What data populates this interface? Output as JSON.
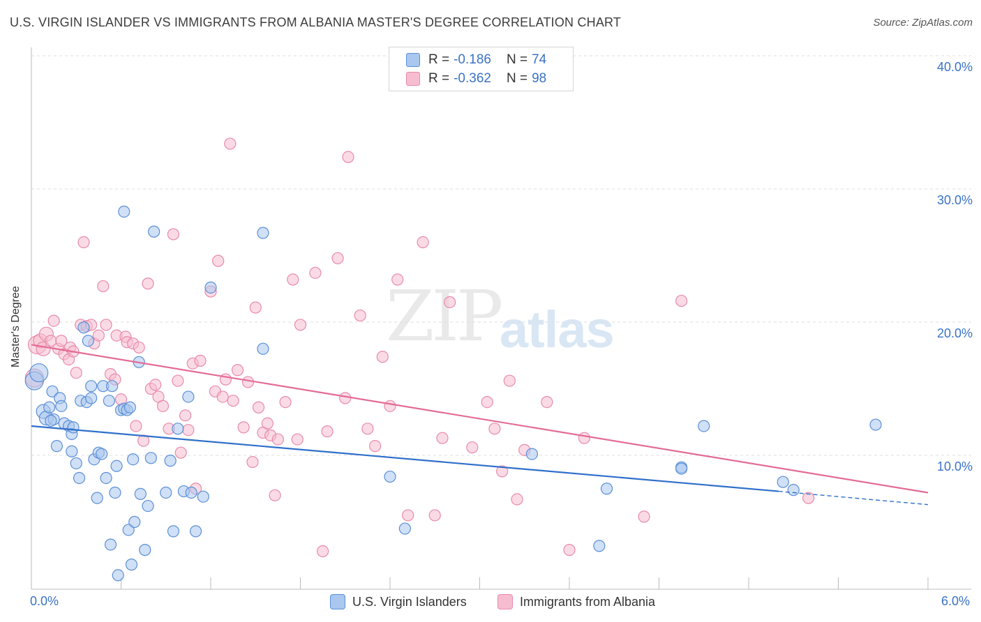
{
  "header": {
    "title": "U.S. VIRGIN ISLANDER VS IMMIGRANTS FROM ALBANIA MASTER'S DEGREE CORRELATION CHART",
    "source": "Source: ZipAtlas.com"
  },
  "watermark": {
    "zip": "ZIP",
    "atlas": "atlas"
  },
  "legend_top": {
    "rows": [
      {
        "r_label": "R =",
        "r_value": "-0.186",
        "n_label": "N =",
        "n_value": "74"
      },
      {
        "r_label": "R =",
        "r_value": "-0.362",
        "n_label": "N =",
        "n_value": "98"
      }
    ]
  },
  "legend_bottom": {
    "series_a": "U.S. Virgin Islanders",
    "series_b": "Immigrants from Albania"
  },
  "axes": {
    "ylabel": "Master's Degree",
    "y_ticks": [
      "10.0%",
      "20.0%",
      "30.0%",
      "40.0%"
    ],
    "x_min_label": "0.0%",
    "x_max_label": "6.0%"
  },
  "colors": {
    "blue_fill": "#a9c7ef",
    "blue_stroke": "#5b8fd6",
    "blue_line": "#2f6fcb",
    "pink_fill": "#f6bdd0",
    "pink_stroke": "#e88aa9",
    "pink_line": "#e36b94",
    "grid": "#dddddd"
  },
  "chart_data": {
    "type": "scatter",
    "xlim": [
      0,
      6
    ],
    "ylim": [
      0,
      42
    ],
    "grid": true,
    "series": [
      {
        "name": "U.S. Virgin Islanders",
        "r": -0.186,
        "n": 74,
        "trend": {
          "x0": 0.0,
          "y0": 12.2,
          "x1": 5.0,
          "y1": 7.3,
          "dash_to_x": 6.0,
          "dash_to_y": 6.3
        },
        "points": [
          [
            0.02,
            15.6
          ],
          [
            0.05,
            16.2
          ],
          [
            0.08,
            13.3
          ],
          [
            0.1,
            12.8
          ],
          [
            0.12,
            13.6
          ],
          [
            0.14,
            14.8
          ],
          [
            0.15,
            12.7
          ],
          [
            0.17,
            10.7
          ],
          [
            0.13,
            12.6
          ],
          [
            0.19,
            14.3
          ],
          [
            0.2,
            13.7
          ],
          [
            0.22,
            12.4
          ],
          [
            0.25,
            12.2
          ],
          [
            0.27,
            11.6
          ],
          [
            0.27,
            10.3
          ],
          [
            0.3,
            9.4
          ],
          [
            0.28,
            12.1
          ],
          [
            0.32,
            8.3
          ],
          [
            0.33,
            14.1
          ],
          [
            0.35,
            19.6
          ],
          [
            0.37,
            14.0
          ],
          [
            0.38,
            18.6
          ],
          [
            0.4,
            14.3
          ],
          [
            0.4,
            15.2
          ],
          [
            0.42,
            9.7
          ],
          [
            0.44,
            6.8
          ],
          [
            0.45,
            10.2
          ],
          [
            0.47,
            10.1
          ],
          [
            0.48,
            15.2
          ],
          [
            0.5,
            8.3
          ],
          [
            0.52,
            14.1
          ],
          [
            0.53,
            3.3
          ],
          [
            0.54,
            15.2
          ],
          [
            0.56,
            7.2
          ],
          [
            0.57,
            9.2
          ],
          [
            0.58,
            1.0
          ],
          [
            0.6,
            13.4
          ],
          [
            0.62,
            13.5
          ],
          [
            0.62,
            28.3
          ],
          [
            0.64,
            13.4
          ],
          [
            0.65,
            4.4
          ],
          [
            0.66,
            13.6
          ],
          [
            0.67,
            1.8
          ],
          [
            0.68,
            9.7
          ],
          [
            0.69,
            5.0
          ],
          [
            0.72,
            17.0
          ],
          [
            0.73,
            7.1
          ],
          [
            0.76,
            2.9
          ],
          [
            0.78,
            6.2
          ],
          [
            0.8,
            9.8
          ],
          [
            0.82,
            26.8
          ],
          [
            0.9,
            7.2
          ],
          [
            0.93,
            9.6
          ],
          [
            0.95,
            4.3
          ],
          [
            0.98,
            12.0
          ],
          [
            1.02,
            7.3
          ],
          [
            1.05,
            14.4
          ],
          [
            1.07,
            7.2
          ],
          [
            1.1,
            4.3
          ],
          [
            1.15,
            6.9
          ],
          [
            1.2,
            22.6
          ],
          [
            1.55,
            26.7
          ],
          [
            1.55,
            18.0
          ],
          [
            2.4,
            8.4
          ],
          [
            2.5,
            4.5
          ],
          [
            3.35,
            10.1
          ],
          [
            3.8,
            3.2
          ],
          [
            3.85,
            7.5
          ],
          [
            4.35,
            9.1
          ],
          [
            4.35,
            9.0
          ],
          [
            4.5,
            12.2
          ],
          [
            5.03,
            8.0
          ],
          [
            5.1,
            7.4
          ],
          [
            5.65,
            12.3
          ]
        ]
      },
      {
        "name": "Immigrants from Albania",
        "r": -0.362,
        "n": 98,
        "trend": {
          "x0": 0.0,
          "y0": 18.3,
          "x1": 6.0,
          "y1": 7.2
        },
        "points": [
          [
            0.02,
            15.8
          ],
          [
            0.04,
            18.3
          ],
          [
            0.06,
            18.6
          ],
          [
            0.08,
            18.0
          ],
          [
            0.1,
            19.1
          ],
          [
            0.13,
            18.6
          ],
          [
            0.15,
            20.1
          ],
          [
            0.18,
            18.0
          ],
          [
            0.2,
            18.6
          ],
          [
            0.22,
            17.6
          ],
          [
            0.25,
            17.2
          ],
          [
            0.26,
            18.1
          ],
          [
            0.28,
            17.8
          ],
          [
            0.3,
            16.2
          ],
          [
            0.33,
            19.8
          ],
          [
            0.35,
            26.0
          ],
          [
            0.37,
            19.7
          ],
          [
            0.4,
            19.8
          ],
          [
            0.42,
            18.4
          ],
          [
            0.45,
            19.0
          ],
          [
            0.48,
            22.7
          ],
          [
            0.5,
            19.8
          ],
          [
            0.53,
            16.1
          ],
          [
            0.56,
            15.7
          ],
          [
            0.57,
            19.0
          ],
          [
            0.6,
            14.2
          ],
          [
            0.63,
            18.9
          ],
          [
            0.64,
            18.5
          ],
          [
            0.68,
            18.4
          ],
          [
            0.7,
            12.2
          ],
          [
            0.72,
            18.1
          ],
          [
            0.75,
            11.1
          ],
          [
            0.78,
            22.9
          ],
          [
            0.8,
            15.0
          ],
          [
            0.83,
            15.3
          ],
          [
            0.85,
            14.4
          ],
          [
            0.88,
            13.7
          ],
          [
            0.92,
            12.0
          ],
          [
            0.95,
            26.6
          ],
          [
            0.98,
            15.6
          ],
          [
            1.0,
            10.2
          ],
          [
            1.03,
            13.0
          ],
          [
            1.08,
            16.9
          ],
          [
            1.1,
            7.5
          ],
          [
            1.13,
            17.1
          ],
          [
            1.2,
            22.3
          ],
          [
            1.23,
            14.8
          ],
          [
            1.25,
            24.6
          ],
          [
            1.28,
            14.4
          ],
          [
            1.3,
            15.7
          ],
          [
            1.33,
            33.4
          ],
          [
            1.35,
            14.1
          ],
          [
            1.38,
            16.4
          ],
          [
            1.42,
            12.1
          ],
          [
            1.45,
            15.5
          ],
          [
            1.48,
            9.5
          ],
          [
            1.5,
            21.1
          ],
          [
            1.52,
            13.6
          ],
          [
            1.55,
            11.7
          ],
          [
            1.58,
            12.4
          ],
          [
            1.6,
            11.5
          ],
          [
            1.63,
            7.0
          ],
          [
            1.65,
            11.2
          ],
          [
            1.7,
            14.0
          ],
          [
            1.75,
            23.2
          ],
          [
            1.78,
            11.2
          ],
          [
            1.8,
            19.8
          ],
          [
            1.9,
            23.7
          ],
          [
            1.95,
            2.8
          ],
          [
            1.98,
            11.8
          ],
          [
            2.05,
            24.8
          ],
          [
            2.1,
            14.3
          ],
          [
            2.12,
            32.4
          ],
          [
            2.2,
            20.5
          ],
          [
            2.25,
            12.0
          ],
          [
            2.3,
            10.7
          ],
          [
            2.35,
            17.4
          ],
          [
            2.4,
            13.7
          ],
          [
            2.45,
            23.2
          ],
          [
            2.52,
            5.5
          ],
          [
            2.62,
            26.0
          ],
          [
            2.7,
            5.5
          ],
          [
            2.75,
            11.3
          ],
          [
            2.8,
            21.5
          ],
          [
            2.95,
            10.6
          ],
          [
            3.05,
            14.0
          ],
          [
            3.1,
            12.0
          ],
          [
            3.15,
            8.8
          ],
          [
            3.2,
            15.6
          ],
          [
            3.25,
            6.7
          ],
          [
            3.3,
            10.4
          ],
          [
            3.45,
            14.0
          ],
          [
            3.6,
            2.9
          ],
          [
            3.7,
            11.3
          ],
          [
            4.1,
            5.4
          ],
          [
            4.35,
            21.6
          ],
          [
            5.2,
            6.8
          ],
          [
            1.05,
            11.9
          ]
        ]
      }
    ]
  }
}
